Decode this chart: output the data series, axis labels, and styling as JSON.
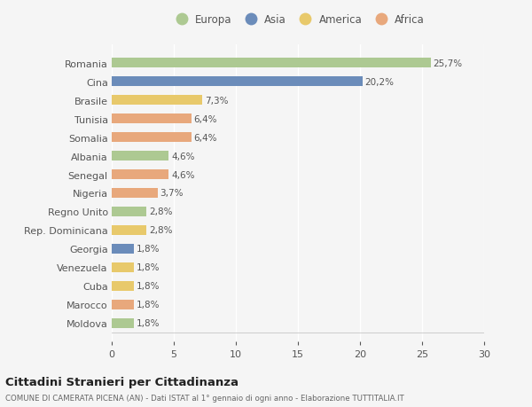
{
  "countries": [
    "Romania",
    "Cina",
    "Brasile",
    "Tunisia",
    "Somalia",
    "Albania",
    "Senegal",
    "Nigeria",
    "Regno Unito",
    "Rep. Dominicana",
    "Georgia",
    "Venezuela",
    "Cuba",
    "Marocco",
    "Moldova"
  ],
  "values": [
    25.7,
    20.2,
    7.3,
    6.4,
    6.4,
    4.6,
    4.6,
    3.7,
    2.8,
    2.8,
    1.8,
    1.8,
    1.8,
    1.8,
    1.8
  ],
  "labels": [
    "25,7%",
    "20,2%",
    "7,3%",
    "6,4%",
    "6,4%",
    "4,6%",
    "4,6%",
    "3,7%",
    "2,8%",
    "2,8%",
    "1,8%",
    "1,8%",
    "1,8%",
    "1,8%",
    "1,8%"
  ],
  "regions": [
    "Europa",
    "Asia",
    "America",
    "Africa",
    "Africa",
    "Europa",
    "Africa",
    "Africa",
    "Europa",
    "America",
    "Asia",
    "America",
    "America",
    "Africa",
    "Europa"
  ],
  "colors": {
    "Europa": "#adc992",
    "Asia": "#6b8cba",
    "America": "#e8c96b",
    "Africa": "#e8a87c"
  },
  "legend_order": [
    "Europa",
    "Asia",
    "America",
    "Africa"
  ],
  "title": "Cittadini Stranieri per Cittadinanza",
  "subtitle": "COMUNE DI CAMERATA PICENA (AN) - Dati ISTAT al 1° gennaio di ogni anno - Elaborazione TUTTITALIA.IT",
  "xlim": [
    0,
    30
  ],
  "xticks": [
    0,
    5,
    10,
    15,
    20,
    25,
    30
  ],
  "background_color": "#f5f5f5",
  "text_color": "#555555",
  "grid_color": "#ffffff",
  "bar_height": 0.55
}
